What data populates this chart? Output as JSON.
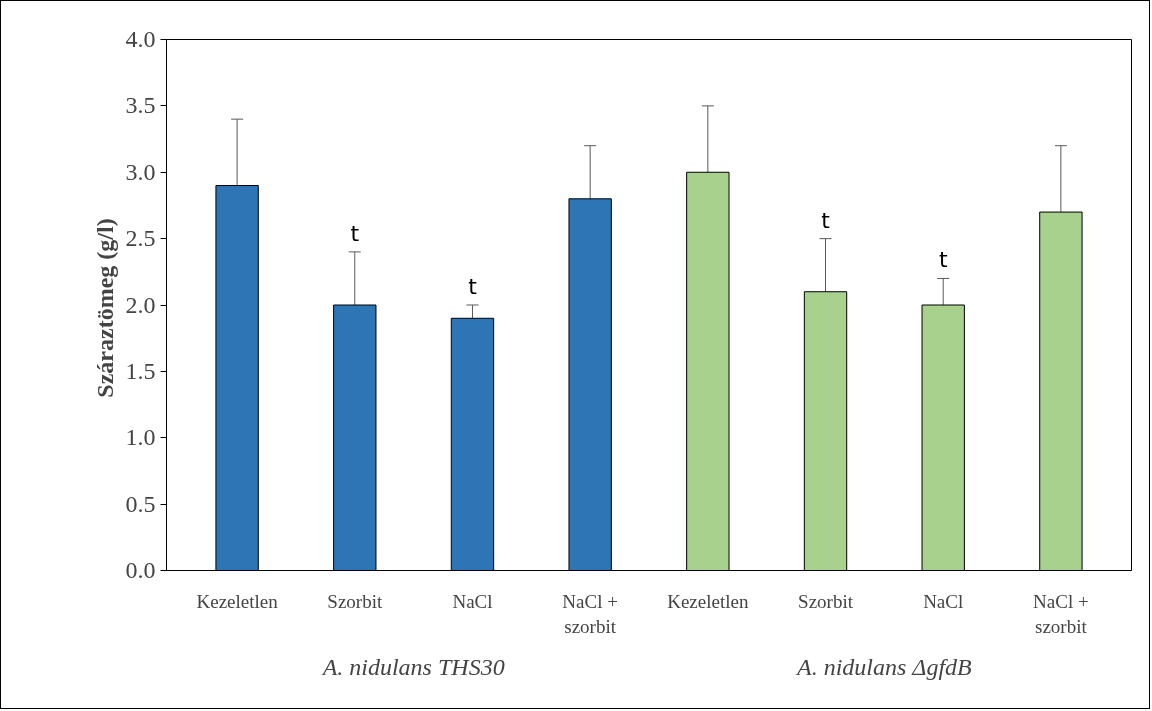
{
  "chart_data": {
    "type": "bar",
    "ylabel": "Száraztömeg  (g/l)",
    "categories": [
      "Kezeletlen",
      "Szorbit",
      "NaCl",
      "NaCl +\nszorbit",
      "Kezeletlen",
      "Szorbit",
      "NaCl",
      "NaCl +\nszorbit"
    ],
    "values": [
      2.9,
      2.0,
      1.9,
      2.8,
      3.0,
      2.1,
      2.0,
      2.7
    ],
    "colors": [
      "#2e75b6",
      "#2e75b6",
      "#2e75b6",
      "#2e75b6",
      "#a9d18e",
      "#a9d18e",
      "#a9d18e",
      "#a9d18e"
    ],
    "errors": [
      [
        2.9,
        3.4
      ],
      [
        2.0,
        2.4
      ],
      [
        1.9,
        2.0
      ],
      [
        2.8,
        3.2
      ],
      [
        3.0,
        3.5
      ],
      [
        2.1,
        2.5
      ],
      [
        2.0,
        2.2
      ],
      [
        2.7,
        3.2
      ]
    ],
    "ylim": [
      0,
      4
    ],
    "yticks": [
      {
        "value": 0,
        "label": "0.0"
      },
      {
        "value": 0.5,
        "label": "0.5"
      },
      {
        "value": 1,
        "label": "1.0"
      },
      {
        "value": 1.5,
        "label": "1.5"
      },
      {
        "value": 2,
        "label": "2.0"
      },
      {
        "value": 2.5,
        "label": "2.5"
      },
      {
        "value": 3,
        "label": "3.0"
      },
      {
        "value": 3.5,
        "label": "3.5"
      },
      {
        "value": 4,
        "label": "4.0"
      }
    ],
    "grid": false,
    "value_labels": [
      null,
      "t",
      "t",
      null,
      null,
      "t",
      "t",
      null
    ],
    "annotations": [
      "A. nidulans THS30",
      "A. nidulans ΔgfdB"
    ]
  }
}
